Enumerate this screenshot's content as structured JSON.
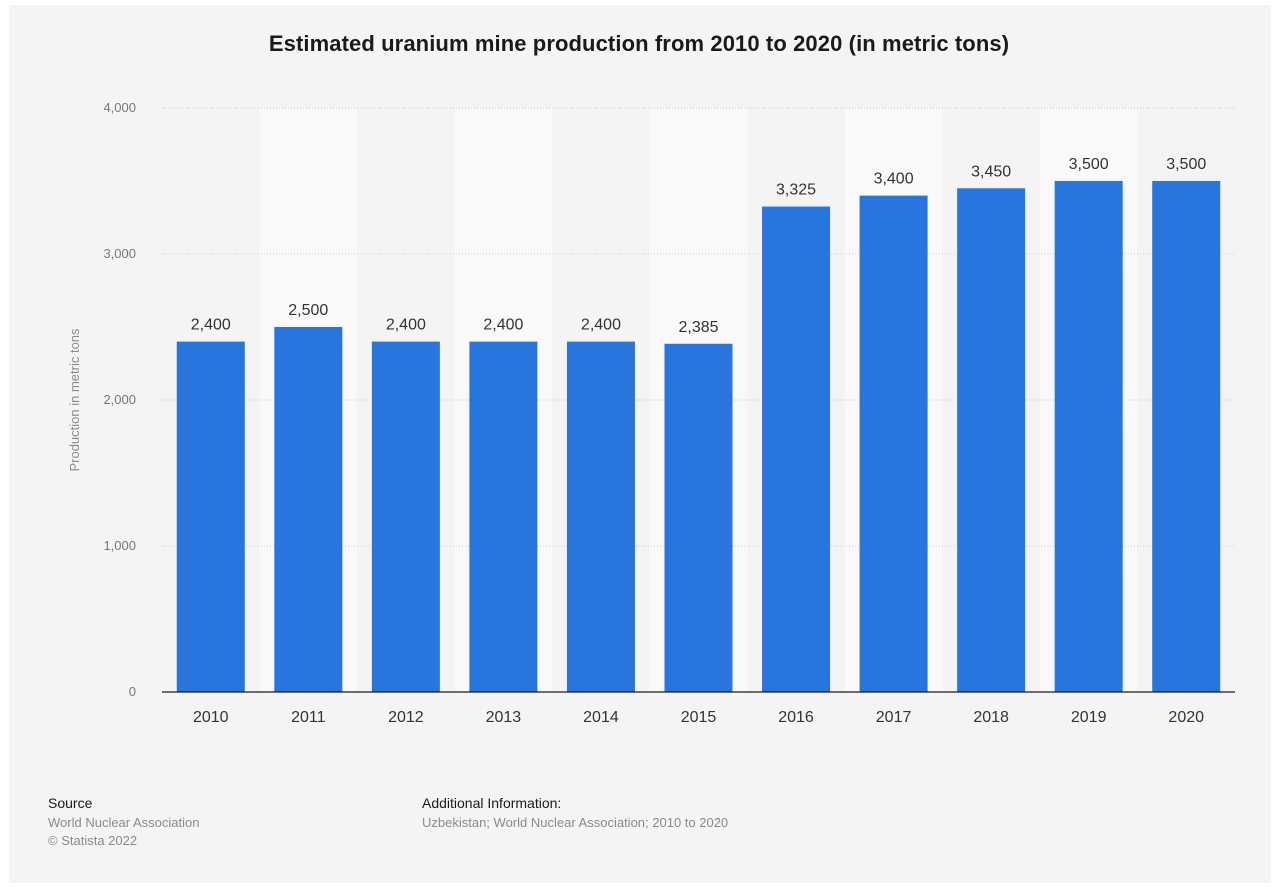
{
  "chart_data": {
    "type": "bar",
    "title": "Estimated uranium mine production from 2010 to 2020 (in metric tons)",
    "xlabel": "",
    "ylabel": "Production in metric tons",
    "categories": [
      "2010",
      "2011",
      "2012",
      "2013",
      "2014",
      "2015",
      "2016",
      "2017",
      "2018",
      "2019",
      "2020"
    ],
    "values": [
      2400,
      2500,
      2400,
      2400,
      2400,
      2385,
      3325,
      3400,
      3450,
      3500,
      3500
    ],
    "value_labels": [
      "2,400",
      "2,500",
      "2,400",
      "2,400",
      "2,400",
      "2,385",
      "3,325",
      "3,400",
      "3,450",
      "3,500",
      "3,500"
    ],
    "ylim": [
      0,
      4000
    ],
    "yticks": [
      0,
      1000,
      2000,
      3000,
      4000
    ],
    "ytick_labels": [
      "0",
      "1,000",
      "2,000",
      "3,000",
      "4,000"
    ],
    "grid": true,
    "legend": "none",
    "bar_color": "#2875dd"
  },
  "footer": {
    "source_heading": "Source",
    "source_lines": [
      "World Nuclear Association",
      "© Statista 2022"
    ],
    "additional_heading": "Additional Information:",
    "additional_text": "Uzbekistan; World Nuclear Association; 2010 to 2020"
  }
}
